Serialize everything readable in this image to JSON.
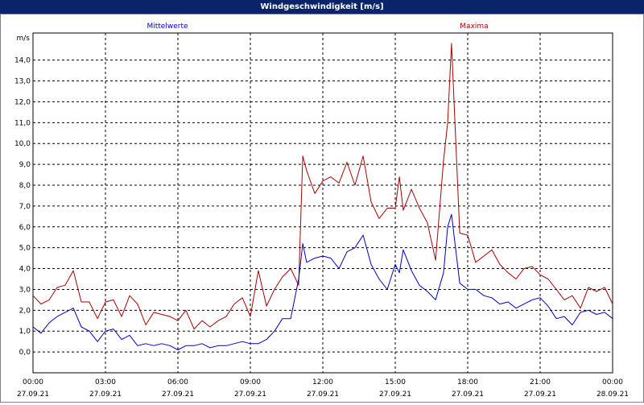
{
  "window": {
    "title": "Windgeschwindigkeit [m/s]"
  },
  "colors": {
    "mean": "#0000cc",
    "max": "#aa0000",
    "grid": "#000000",
    "background": "#ffffff"
  },
  "chart_data": {
    "type": "line",
    "title": "Windgeschwindigkeit [m/s]",
    "ylabel": "m/s",
    "xlabel": "",
    "ylim": [
      -1.0,
      15.3
    ],
    "xlim": [
      0,
      24
    ],
    "grid": true,
    "y_ticks": [
      "0,0",
      "1,0",
      "2,0",
      "3,0",
      "4,0",
      "5,0",
      "6,0",
      "7,0",
      "8,0",
      "9,0",
      "10,0",
      "11,0",
      "12,0",
      "13,0",
      "14,0"
    ],
    "x_ticks": [
      {
        "time": "00:00",
        "date": "27.09.21"
      },
      {
        "time": "03:00",
        "date": "27.09.21"
      },
      {
        "time": "06:00",
        "date": "27.09.21"
      },
      {
        "time": "09:00",
        "date": "27.09.21"
      },
      {
        "time": "12:00",
        "date": "27.09.21"
      },
      {
        "time": "15:00",
        "date": "27.09.21"
      },
      {
        "time": "18:00",
        "date": "27.09.21"
      },
      {
        "time": "21:00",
        "date": "27.09.21"
      },
      {
        "time": "00:00",
        "date": "28.09.21"
      }
    ],
    "series": [
      {
        "name": "Mittelwerte",
        "x": [
          0,
          0.33,
          0.67,
          1,
          1.33,
          1.67,
          2,
          2.33,
          2.67,
          3,
          3.33,
          3.67,
          4,
          4.33,
          4.67,
          5,
          5.33,
          5.67,
          6,
          6.33,
          6.67,
          7,
          7.33,
          7.67,
          8,
          8.33,
          8.67,
          9,
          9.33,
          9.67,
          10,
          10.33,
          10.67,
          11,
          11.17,
          11.33,
          11.67,
          12,
          12.33,
          12.67,
          13,
          13.33,
          13.67,
          14,
          14.33,
          14.67,
          15,
          15.17,
          15.33,
          15.67,
          16,
          16.33,
          16.67,
          17,
          17.17,
          17.33,
          17.67,
          18,
          18.33,
          18.67,
          19,
          19.33,
          19.67,
          20,
          20.33,
          20.67,
          21,
          21.33,
          21.67,
          22,
          22.33,
          22.67,
          23,
          23.33,
          23.67,
          24
        ],
        "y": [
          1.2,
          0.9,
          1.4,
          1.7,
          1.9,
          2.1,
          1.2,
          1.0,
          0.5,
          1.0,
          1.1,
          0.6,
          0.8,
          0.3,
          0.4,
          0.3,
          0.4,
          0.3,
          0.1,
          0.3,
          0.3,
          0.4,
          0.2,
          0.3,
          0.3,
          0.4,
          0.5,
          0.4,
          0.4,
          0.6,
          1.0,
          1.6,
          1.6,
          3.5,
          5.2,
          4.3,
          4.5,
          4.6,
          4.5,
          4.0,
          4.8,
          5.0,
          5.6,
          4.2,
          3.5,
          3.0,
          4.2,
          3.8,
          4.9,
          3.9,
          3.2,
          2.9,
          2.5,
          3.8,
          6.0,
          6.6,
          3.3,
          3.0,
          3.0,
          2.7,
          2.6,
          2.3,
          2.4,
          2.1,
          2.3,
          2.5,
          2.6,
          2.2,
          1.6,
          1.7,
          1.3,
          1.9,
          2.0,
          1.8,
          1.9,
          1.6
        ]
      },
      {
        "name": "Maxima",
        "x": [
          0,
          0.33,
          0.67,
          1,
          1.33,
          1.67,
          2,
          2.33,
          2.67,
          3,
          3.33,
          3.67,
          4,
          4.33,
          4.67,
          5,
          5.33,
          5.67,
          6,
          6.33,
          6.67,
          7,
          7.33,
          7.67,
          8,
          8.33,
          8.67,
          9,
          9.33,
          9.67,
          10,
          10.33,
          10.67,
          11,
          11.17,
          11.33,
          11.67,
          12,
          12.33,
          12.67,
          13,
          13.33,
          13.67,
          14,
          14.33,
          14.67,
          15,
          15.17,
          15.33,
          15.67,
          16,
          16.33,
          16.67,
          17,
          17.17,
          17.33,
          17.67,
          18,
          18.33,
          18.67,
          19,
          19.33,
          19.67,
          20,
          20.33,
          20.67,
          21,
          21.33,
          21.67,
          22,
          22.33,
          22.67,
          23,
          23.33,
          23.67,
          24
        ],
        "y": [
          2.7,
          2.3,
          2.5,
          3.1,
          3.2,
          3.9,
          2.4,
          2.4,
          1.6,
          2.4,
          2.5,
          1.7,
          2.7,
          2.3,
          1.3,
          1.9,
          1.8,
          1.7,
          1.5,
          2.0,
          1.1,
          1.5,
          1.2,
          1.5,
          1.7,
          2.3,
          2.6,
          1.7,
          3.9,
          2.2,
          3.0,
          3.6,
          4.0,
          3.2,
          9.4,
          8.7,
          7.6,
          8.2,
          8.4,
          8.1,
          9.1,
          8.0,
          9.4,
          7.2,
          6.4,
          6.9,
          6.9,
          8.4,
          6.8,
          7.8,
          6.9,
          6.2,
          4.4,
          9.2,
          11.0,
          14.8,
          5.7,
          5.6,
          4.3,
          4.6,
          4.9,
          4.2,
          3.8,
          3.5,
          4.0,
          4.1,
          3.7,
          3.5,
          3.0,
          2.5,
          2.7,
          2.1,
          3.1,
          2.9,
          3.1,
          2.3
        ]
      }
    ]
  }
}
